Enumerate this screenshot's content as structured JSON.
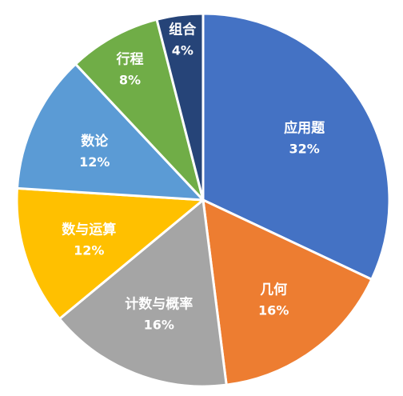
{
  "chart_data": {
    "type": "pie",
    "title": "",
    "start_angle_deg": 0,
    "direction": "clockwise",
    "slices": [
      {
        "label": "应用题",
        "value": 32,
        "display": "32%",
        "color": "#4472C4"
      },
      {
        "label": "几何",
        "value": 16,
        "display": "16%",
        "color": "#ED7D31"
      },
      {
        "label": "计数与概率",
        "value": 16,
        "display": "16%",
        "color": "#A5A5A5"
      },
      {
        "label": "数与运算",
        "value": 12,
        "display": "12%",
        "color": "#FFC000"
      },
      {
        "label": "数论",
        "value": 12,
        "display": "12%",
        "color": "#5B9BD5"
      },
      {
        "label": "行程",
        "value": 8,
        "display": "8%",
        "color": "#70AD47"
      },
      {
        "label": "组合",
        "value": 4,
        "display": "4%",
        "color": "#264478"
      }
    ]
  }
}
